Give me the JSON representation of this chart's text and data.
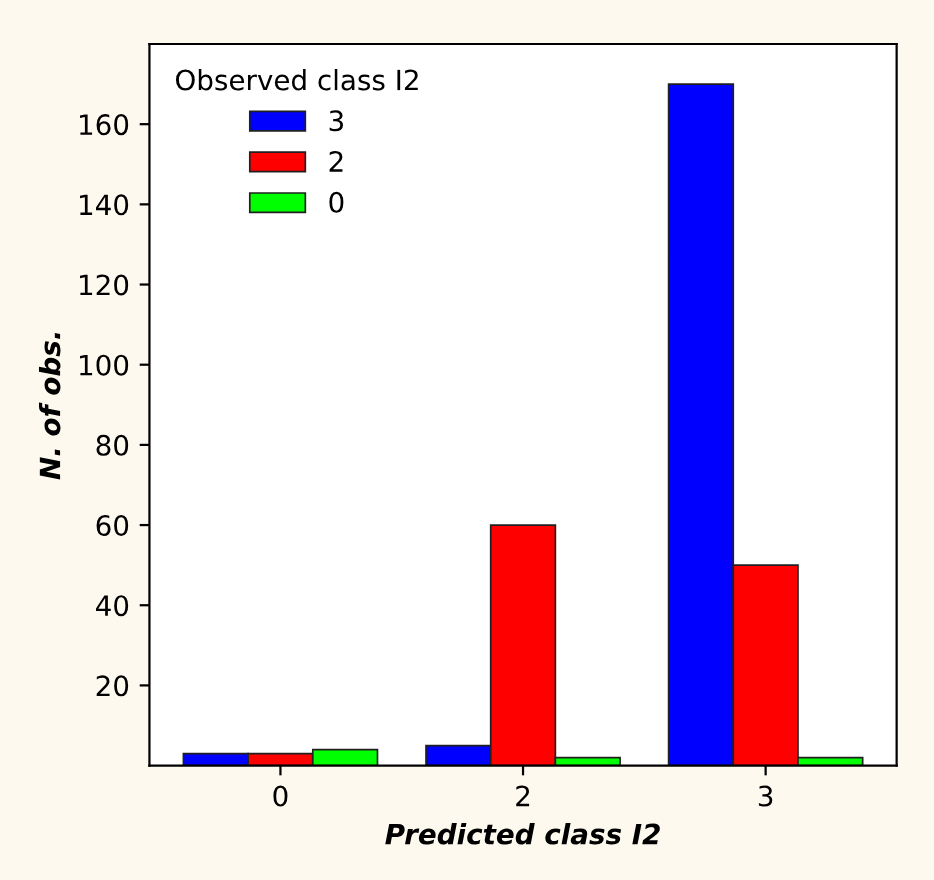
{
  "chart_data": {
    "type": "bar",
    "xlabel": "Predicted class I2",
    "ylabel": "N. of obs.",
    "legend_title": "Observed class I2",
    "categories": [
      "0",
      "2",
      "3"
    ],
    "series": [
      {
        "name": "3",
        "color": "#0000ff",
        "values": [
          3,
          5,
          170
        ]
      },
      {
        "name": "2",
        "color": "#ff0000",
        "values": [
          3,
          60,
          50
        ]
      },
      {
        "name": "0",
        "color": "#00ff00",
        "values": [
          4,
          2,
          2
        ]
      }
    ],
    "ylim": [
      0,
      180
    ],
    "yticks": [
      20,
      40,
      60,
      80,
      100,
      120,
      140,
      160
    ],
    "grid": false,
    "legend": "top left"
  }
}
